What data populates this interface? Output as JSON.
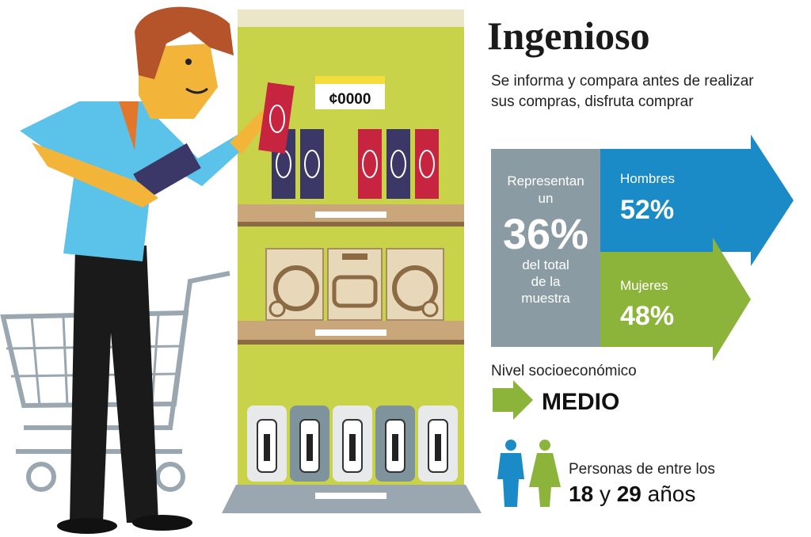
{
  "header": {
    "title": "Ingenioso",
    "description": [
      "Se informa y compara antes de realizar",
      "sus compras, disfruta comprar"
    ]
  },
  "share": {
    "lead": [
      "Representan",
      "un"
    ],
    "value": "36%",
    "tail": [
      "del total",
      "de la",
      "muestra"
    ]
  },
  "men": {
    "label": "Hombres",
    "value": "52%"
  },
  "women": {
    "label": "Mujeres",
    "value": "48%"
  },
  "socioeconomic": {
    "label": "Nivel socioeconómico",
    "value": "MEDIO"
  },
  "age": {
    "intro": "Personas de entre los",
    "from": "18",
    "joiner": "y",
    "to": "29",
    "unit": "años"
  },
  "illustration": {
    "price_tag": "¢0000"
  }
}
